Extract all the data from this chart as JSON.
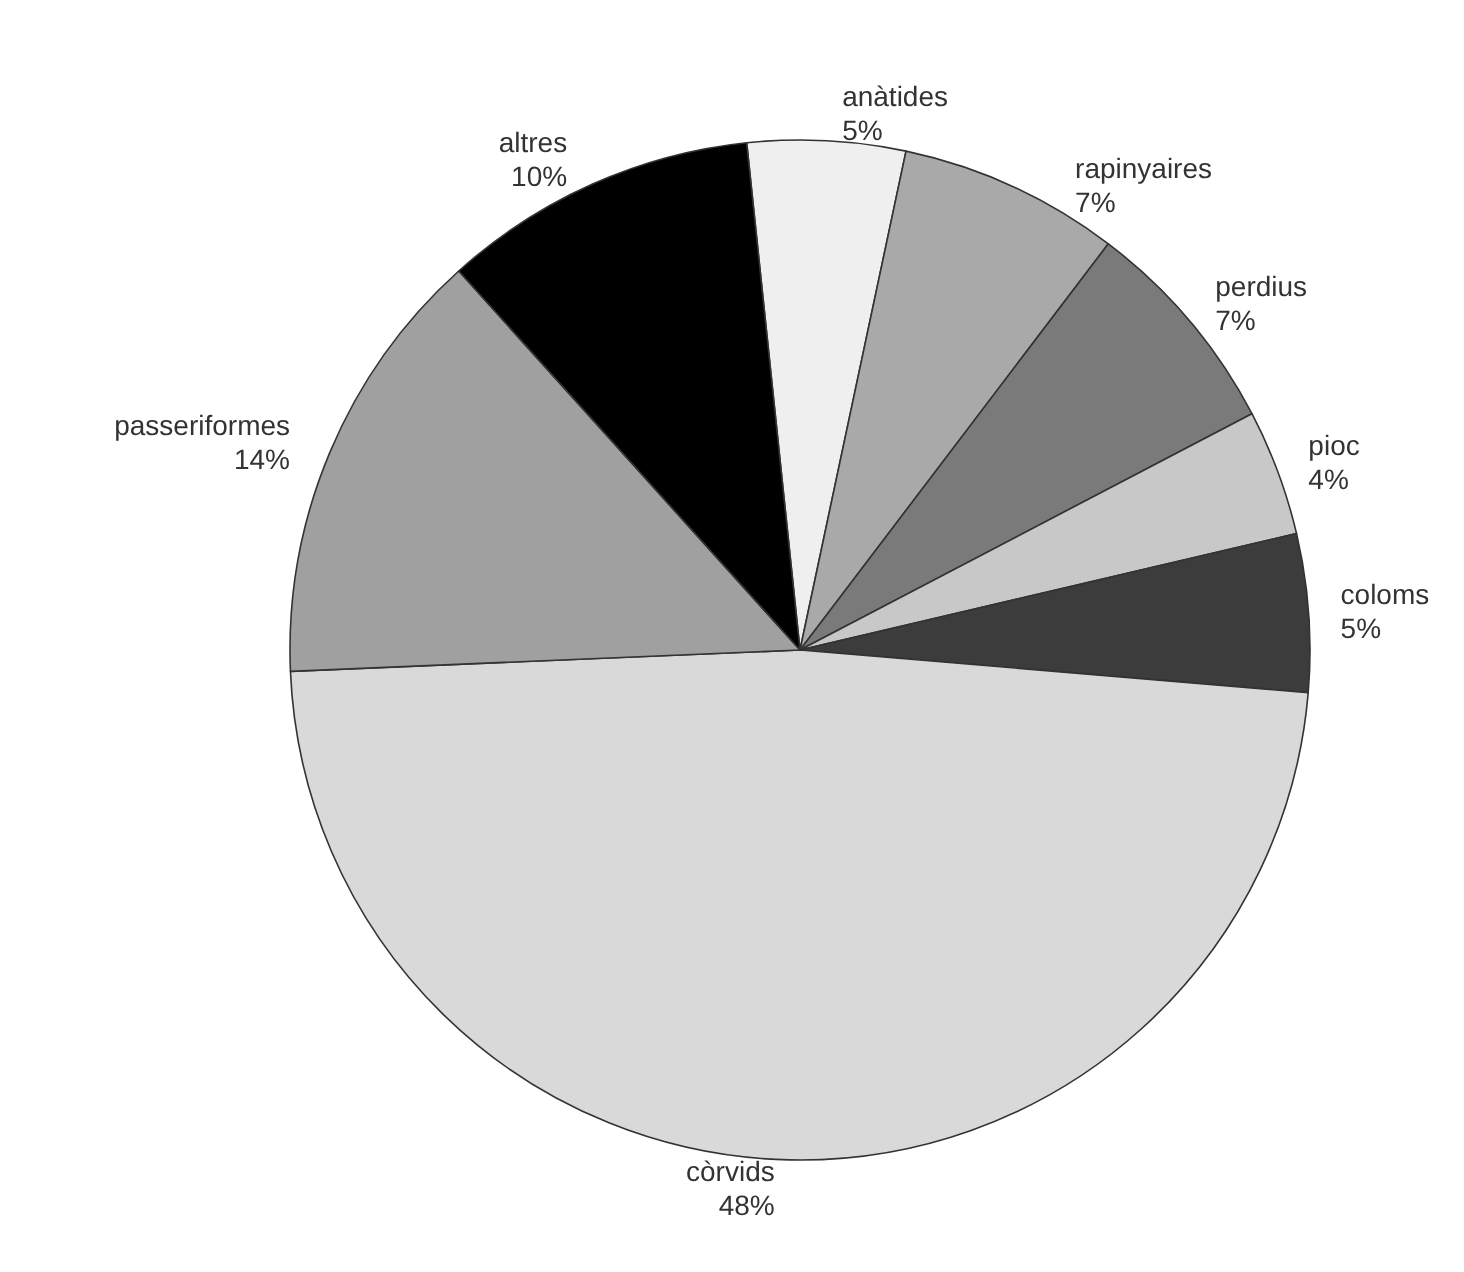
{
  "chart_data": {
    "type": "pie",
    "categories": [
      "anàtides",
      "rapinyaires",
      "perdius",
      "pioc",
      "coloms",
      "còrvids",
      "passeriformes",
      "altres"
    ],
    "values": [
      5,
      7,
      7,
      4,
      5,
      48,
      14,
      10
    ],
    "value_labels": [
      "5%",
      "7%",
      "7%",
      "4%",
      "5%",
      "48%",
      "14%",
      "10%"
    ],
    "colors": [
      "#efefef",
      "#a9a9a9",
      "#7a7a7a",
      "#c8c8c8",
      "#3c3c3c",
      "#d9d9d9",
      "#a0a0a0",
      "#000000"
    ],
    "legend": false
  }
}
